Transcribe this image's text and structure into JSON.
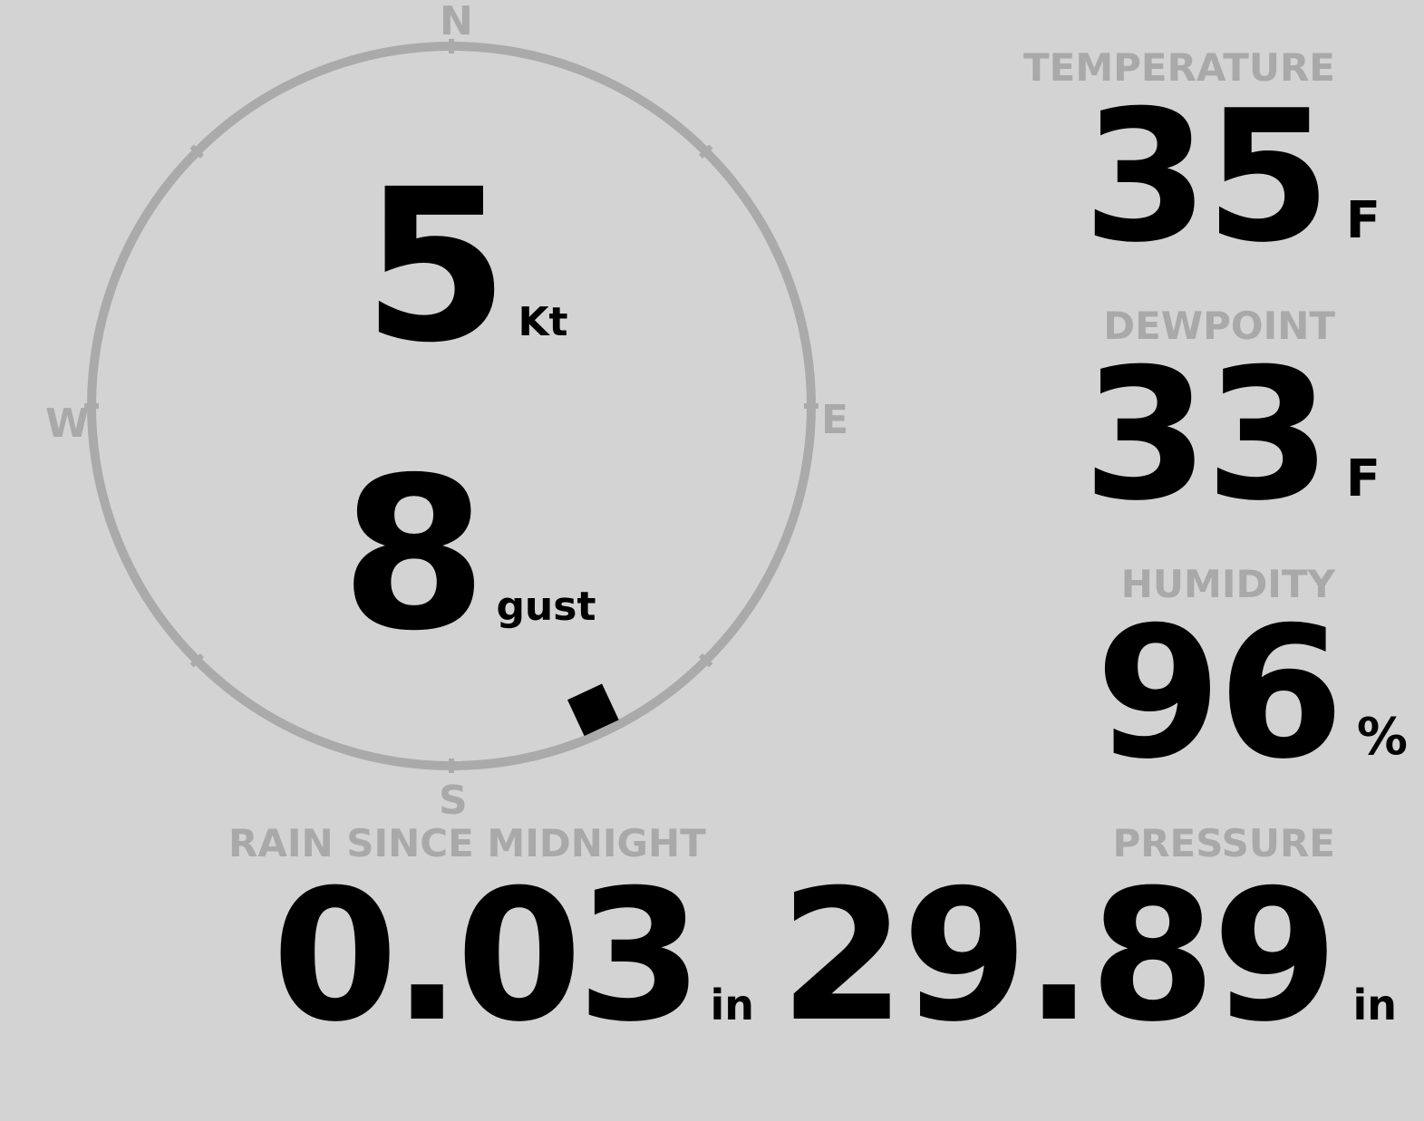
{
  "colors": {
    "background": "#d3d3d3",
    "ring": "#aaaaaa",
    "label": "#a9a9a9",
    "value": "#000000"
  },
  "wind": {
    "compass": {
      "north": "N",
      "south": "S",
      "east": "E",
      "west": "W"
    },
    "direction_deg": 155,
    "speed": "5",
    "speed_unit": "Kt",
    "gust": "8",
    "gust_unit": "gust"
  },
  "temperature": {
    "label": "TEMPERATURE",
    "value": "35",
    "unit": "F"
  },
  "dewpoint": {
    "label": "DEWPOINT",
    "value": "33",
    "unit": "F"
  },
  "humidity": {
    "label": "HUMIDITY",
    "value": "96",
    "unit": "%"
  },
  "rain": {
    "label": "RAIN SINCE MIDNIGHT",
    "value": "0.03",
    "unit": "in"
  },
  "pressure": {
    "label": "PRESSURE",
    "value": "29.89",
    "unit": "in"
  }
}
